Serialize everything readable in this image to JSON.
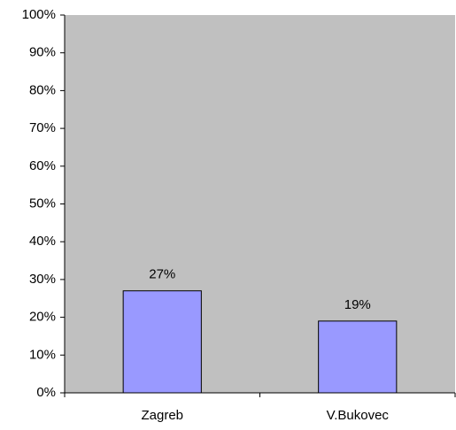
{
  "chart_data": {
    "type": "bar",
    "categories": [
      "Zagreb",
      "V.Bukovec"
    ],
    "values": [
      27,
      19
    ],
    "value_labels": [
      "27%",
      "19%"
    ],
    "color": "#9999ff",
    "plot_background": "#c0c0c0",
    "ylim": [
      0,
      100
    ],
    "yticks": [
      {
        "value": 0,
        "label": "0%"
      },
      {
        "value": 10,
        "label": "10%"
      },
      {
        "value": 20,
        "label": "20%"
      },
      {
        "value": 30,
        "label": "30%"
      },
      {
        "value": 40,
        "label": "40%"
      },
      {
        "value": 50,
        "label": "50%"
      },
      {
        "value": 60,
        "label": "60%"
      },
      {
        "value": 70,
        "label": "70%"
      },
      {
        "value": 80,
        "label": "80%"
      },
      {
        "value": 90,
        "label": "90%"
      },
      {
        "value": 100,
        "label": "100%"
      }
    ],
    "grid": false
  }
}
